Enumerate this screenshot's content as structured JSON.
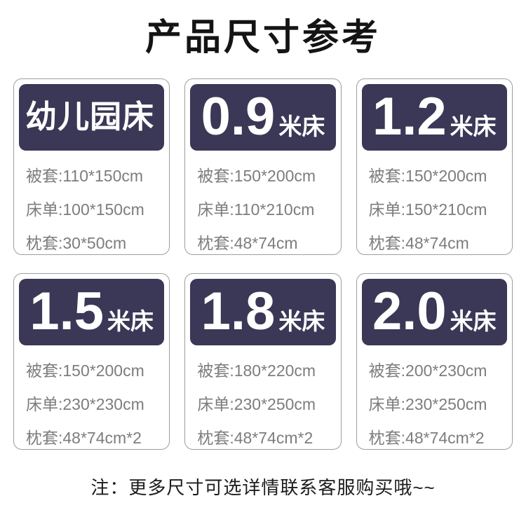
{
  "title": "产品尺寸参考",
  "note": "注：更多尺寸可选详情联系客服购买哦~~",
  "colors": {
    "header_bg": "#3b3756",
    "header_text": "#ffffff",
    "card_border": "#9e9e9e",
    "spec_text": "#7d7d7d",
    "title_text": "#141414"
  },
  "cards": [
    {
      "header_main": "幼儿园床",
      "header_suffix": "",
      "specs": [
        "被套:110*150cm",
        "床单:100*150cm",
        "枕套:30*50cm"
      ]
    },
    {
      "header_main": "0.9",
      "header_suffix": "米床",
      "specs": [
        "被套:150*200cm",
        "床单:110*210cm",
        "枕套:48*74cm"
      ]
    },
    {
      "header_main": "1.2",
      "header_suffix": "米床",
      "specs": [
        "被套:150*200cm",
        "床单:150*210cm",
        "枕套:48*74cm"
      ]
    },
    {
      "header_main": "1.5",
      "header_suffix": "米床",
      "specs": [
        "被套:150*200cm",
        "床单:230*230cm",
        "枕套:48*74cm*2"
      ]
    },
    {
      "header_main": "1.8",
      "header_suffix": "米床",
      "specs": [
        "被套:180*220cm",
        "床单:230*250cm",
        "枕套:48*74cm*2"
      ]
    },
    {
      "header_main": "2.0",
      "header_suffix": "米床",
      "specs": [
        "被套:200*230cm",
        "床单:230*250cm",
        "枕套:48*74cm*2"
      ]
    }
  ]
}
